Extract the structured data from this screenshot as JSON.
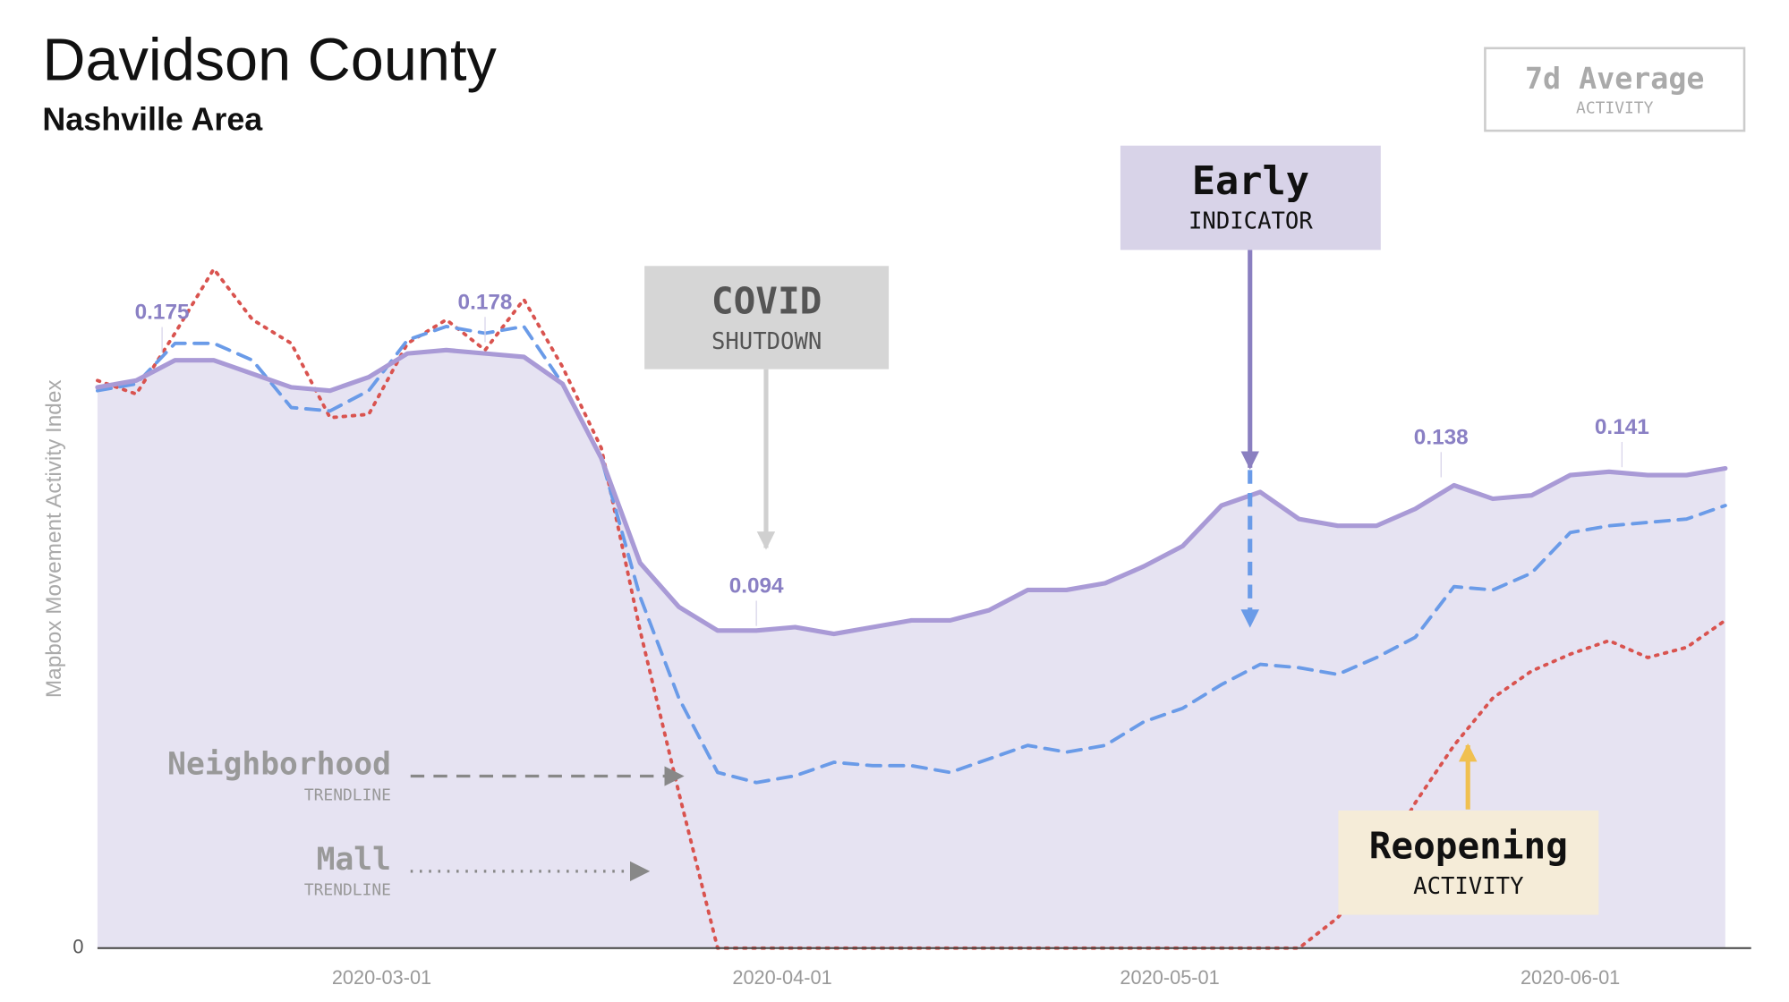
{
  "chart_data": {
    "type": "line",
    "title": "Davidson County",
    "subtitle": "Nashville Area",
    "ylabel": "Mapbox Movement Activity Index",
    "badge": {
      "title": "7d Average",
      "subtitle": "ACTIVITY"
    },
    "xlim": [
      "2020-02-08",
      "2020-06-15"
    ],
    "xticks": [
      "2020-03-01",
      "2020-04-01",
      "2020-05-01",
      "2020-06-01"
    ],
    "ylim": [
      0,
      0.2
    ],
    "yticks": [
      0
    ],
    "area_color": "#e6e3f2",
    "x": [
      "2020-02-08",
      "2020-02-11",
      "2020-02-14",
      "2020-02-17",
      "2020-02-20",
      "2020-02-23",
      "2020-02-26",
      "2020-02-29",
      "2020-03-03",
      "2020-03-06",
      "2020-03-09",
      "2020-03-12",
      "2020-03-15",
      "2020-03-18",
      "2020-03-21",
      "2020-03-24",
      "2020-03-27",
      "2020-03-30",
      "2020-04-02",
      "2020-04-05",
      "2020-04-08",
      "2020-04-11",
      "2020-04-14",
      "2020-04-17",
      "2020-04-20",
      "2020-04-23",
      "2020-04-26",
      "2020-04-29",
      "2020-05-02",
      "2020-05-05",
      "2020-05-08",
      "2020-05-11",
      "2020-05-14",
      "2020-05-17",
      "2020-05-20",
      "2020-05-23",
      "2020-05-26",
      "2020-05-29",
      "2020-06-01",
      "2020-06-04",
      "2020-06-07",
      "2020-06-10",
      "2020-06-13"
    ],
    "series": [
      {
        "color": "#a99ad6",
        "style": "solid",
        "values": [
          0.166,
          0.168,
          0.174,
          0.174,
          0.17,
          0.166,
          0.165,
          0.169,
          0.176,
          0.177,
          0.176,
          0.175,
          0.167,
          0.145,
          0.114,
          0.101,
          0.094,
          0.094,
          0.095,
          0.093,
          0.095,
          0.097,
          0.097,
          0.1,
          0.106,
          0.106,
          0.108,
          0.113,
          0.119,
          0.131,
          0.135,
          0.127,
          0.125,
          0.125,
          0.13,
          0.137,
          0.133,
          0.134,
          0.14,
          0.141,
          0.14,
          0.14,
          0.142
        ]
      },
      {
        "name": "Neighborhood",
        "note": "TRENDLINE",
        "color": "#6a9be8",
        "style": "dashed",
        "values": [
          0.165,
          0.167,
          0.179,
          0.179,
          0.174,
          0.16,
          0.159,
          0.165,
          0.18,
          0.184,
          0.182,
          0.184,
          0.167,
          0.145,
          0.104,
          0.074,
          0.052,
          0.049,
          0.051,
          0.055,
          0.054,
          0.054,
          0.052,
          0.056,
          0.06,
          0.058,
          0.06,
          0.067,
          0.071,
          0.078,
          0.084,
          0.083,
          0.081,
          0.086,
          0.092,
          0.107,
          0.106,
          0.111,
          0.123,
          0.125,
          0.126,
          0.127,
          0.131
        ]
      },
      {
        "name": "Mall",
        "note": "TRENDLINE",
        "color": "#d9534f",
        "style": "dotted",
        "values": [
          0.168,
          0.164,
          0.182,
          0.201,
          0.186,
          0.179,
          0.157,
          0.158,
          0.179,
          0.186,
          0.177,
          0.192,
          0.172,
          0.148,
          0.094,
          0.046,
          0,
          0,
          0,
          0,
          0,
          0,
          0,
          0,
          0,
          0,
          0,
          0,
          0,
          0,
          0,
          0,
          0.009,
          0.023,
          0.043,
          0.06,
          0.074,
          0.082,
          0.087,
          0.091,
          0.086,
          0.089,
          0.097
        ]
      }
    ],
    "annotations": [
      {
        "label": "0.175",
        "value": 0.175,
        "x": "2020-02-13"
      },
      {
        "label": "0.178",
        "value": 0.178,
        "x": "2020-03-09"
      },
      {
        "label": "0.094",
        "value": 0.094,
        "x": "2020-03-30"
      },
      {
        "label": "0.138",
        "value": 0.138,
        "x": "2020-05-22"
      },
      {
        "label": "0.141",
        "value": 0.141,
        "x": "2020-06-05"
      }
    ],
    "callouts": [
      {
        "title": "COVID",
        "subtitle": "SHUTDOWN"
      },
      {
        "title": "Early",
        "subtitle": "INDICATOR"
      },
      {
        "title": "Reopening",
        "subtitle": "ACTIVITY"
      }
    ]
  }
}
